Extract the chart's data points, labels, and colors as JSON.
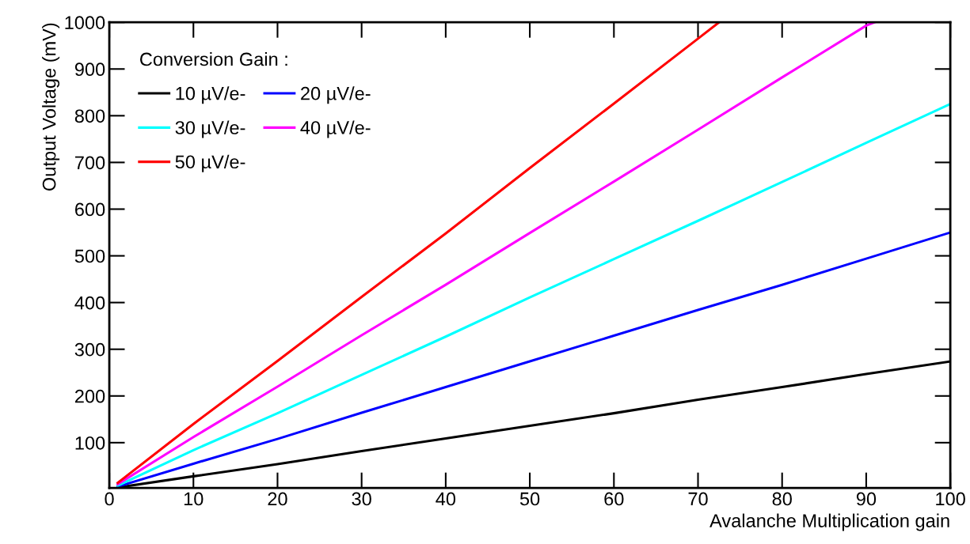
{
  "chart_data": {
    "type": "line",
    "xlabel": "Avalanche Multiplication gain",
    "ylabel": "Output Voltage (mV)",
    "legend_title": "Conversion Gain :",
    "legend": "top left",
    "xlim": [
      0,
      100
    ],
    "ylim": [
      3,
      1000
    ],
    "xticks": [
      0,
      10,
      20,
      30,
      40,
      50,
      60,
      70,
      80,
      90,
      100
    ],
    "yticks": [
      100,
      200,
      300,
      400,
      500,
      600,
      700,
      800,
      900,
      1000
    ],
    "grid": false,
    "marker": "none",
    "line_style": "solid",
    "series": [
      {
        "name": "10 µV/e-",
        "color": "#000000",
        "x": [
          1,
          10,
          20,
          30,
          40,
          50,
          60,
          70,
          80,
          90,
          100
        ],
        "values": [
          4,
          28,
          54,
          82,
          109,
          136,
          163,
          192,
          219,
          247,
          274
        ]
      },
      {
        "name": "20 µV/e-",
        "color": "#0000ff",
        "x": [
          1,
          10,
          20,
          30,
          40,
          50,
          60,
          70,
          80,
          90,
          100
        ],
        "values": [
          6,
          55,
          108,
          164,
          219,
          274,
          329,
          384,
          438,
          494,
          550
        ]
      },
      {
        "name": "30 µV/e-",
        "color": "#00ffff",
        "x": [
          1,
          10,
          20,
          30,
          40,
          50,
          60,
          70,
          80,
          90,
          100
        ],
        "values": [
          8,
          84,
          163,
          245,
          327,
          411,
          493,
          575,
          658,
          742,
          825
        ]
      },
      {
        "name": "40 µV/e-",
        "color": "#ff00ff",
        "x": [
          1,
          10,
          20,
          30,
          40,
          50,
          60,
          70,
          80,
          90,
          91
        ],
        "values": [
          11,
          112,
          220,
          330,
          438,
          549,
          659,
          770,
          882,
          993,
          1000
        ]
      },
      {
        "name": "50 µV/e-",
        "color": "#ff0000",
        "x": [
          1,
          10,
          20,
          30,
          40,
          50,
          60,
          70,
          72.5
        ],
        "values": [
          14,
          140,
          275,
          412,
          548,
          688,
          826,
          965,
          1000
        ]
      }
    ]
  }
}
